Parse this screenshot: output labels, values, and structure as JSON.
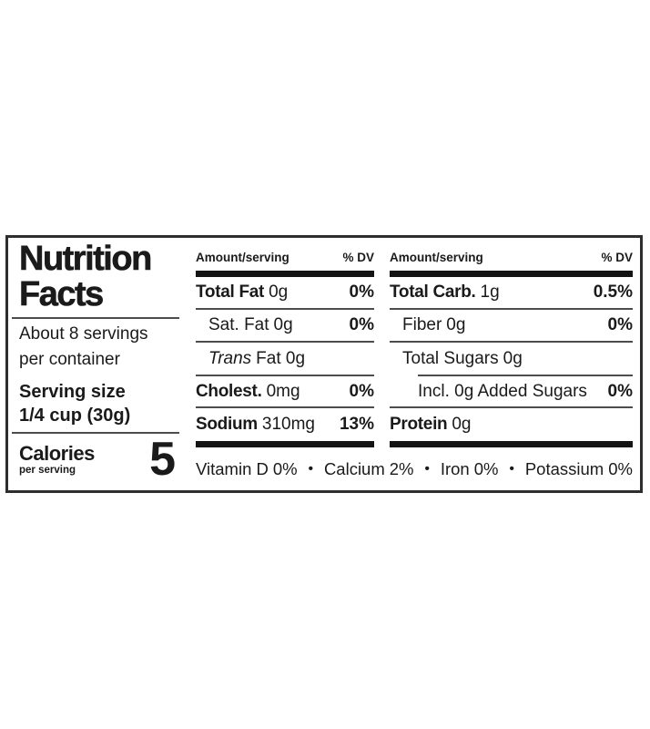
{
  "label": {
    "title": {
      "line1": "Nutrition",
      "line2": "Facts"
    },
    "servings": {
      "line1": "About 8 servings",
      "line2": "per container"
    },
    "serving_size": {
      "label": "Serving size",
      "value": "1/4 cup (30g)"
    },
    "calories": {
      "label": "Calories",
      "sublabel": "per serving",
      "value": "5"
    },
    "columns": {
      "amount_header": "Amount/serving",
      "dv_header": "% DV"
    },
    "mid_rows": [
      {
        "name": "Total Fat",
        "amount": "0g",
        "dv": "0%"
      },
      {
        "name": "Sat. Fat",
        "amount": "0g",
        "dv": "0%"
      },
      {
        "name": "Trans",
        "amount": "Fat 0g",
        "dv": ""
      },
      {
        "name": "Cholest.",
        "amount": "0mg",
        "dv": "0%"
      },
      {
        "name": "Sodium",
        "amount": "310mg",
        "dv": "13%"
      }
    ],
    "right_rows": [
      {
        "name": "Total Carb.",
        "amount": "1g",
        "dv": "0.5%"
      },
      {
        "name": "Fiber",
        "amount": "0g",
        "dv": "0%"
      },
      {
        "name": "Total Sugars",
        "amount": "0g",
        "dv": ""
      },
      {
        "name": "Incl. 0g Added Sugars",
        "amount": "",
        "dv": "0%"
      },
      {
        "name": "Protein",
        "amount": "0g",
        "dv": ""
      }
    ],
    "micronutrients": [
      {
        "name": "Vitamin D",
        "value": "0%"
      },
      {
        "name": "Calcium",
        "value": "2%"
      },
      {
        "name": "Iron",
        "value": "0%"
      },
      {
        "name": "Potassium",
        "value": "0%"
      }
    ],
    "bullet": "•"
  },
  "colors": {
    "background": "#ffffff",
    "text": "#1a1a1a",
    "border": "#2e2e2e",
    "thick_bar": "#141414",
    "thin_rule": "#4d4d4d"
  }
}
